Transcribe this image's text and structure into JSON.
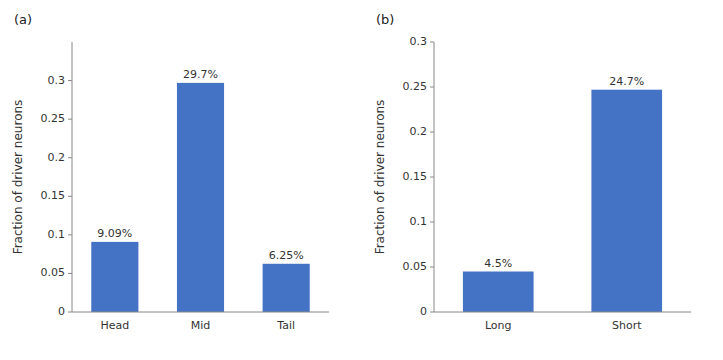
{
  "chart_data": [
    {
      "type": "bar",
      "title": "(a)",
      "categories": [
        "Head",
        "Mid",
        "Tail"
      ],
      "values": [
        0.0909,
        0.297,
        0.0625
      ],
      "value_labels": [
        "9.09%",
        "29.7%",
        "6.25%"
      ],
      "data_labels": true,
      "ylabel": "Fraction of driver neurons",
      "ylim": [
        0,
        0.35
      ],
      "yticks": [
        0,
        0.05,
        0.1,
        0.15,
        0.2,
        0.25,
        0.3
      ],
      "color": "#4472C4",
      "grid": false
    },
    {
      "type": "bar",
      "title": "(b)",
      "categories": [
        "Long",
        "Short"
      ],
      "values": [
        0.045,
        0.247
      ],
      "value_labels": [
        "4.5%",
        "24.7%"
      ],
      "data_labels": true,
      "ylabel": "Fraction of driver neurons",
      "ylim": [
        0,
        0.3
      ],
      "yticks": [
        0,
        0.05,
        0.1,
        0.15,
        0.2,
        0.25,
        0.3
      ],
      "color": "#4472C4",
      "grid": false
    }
  ]
}
